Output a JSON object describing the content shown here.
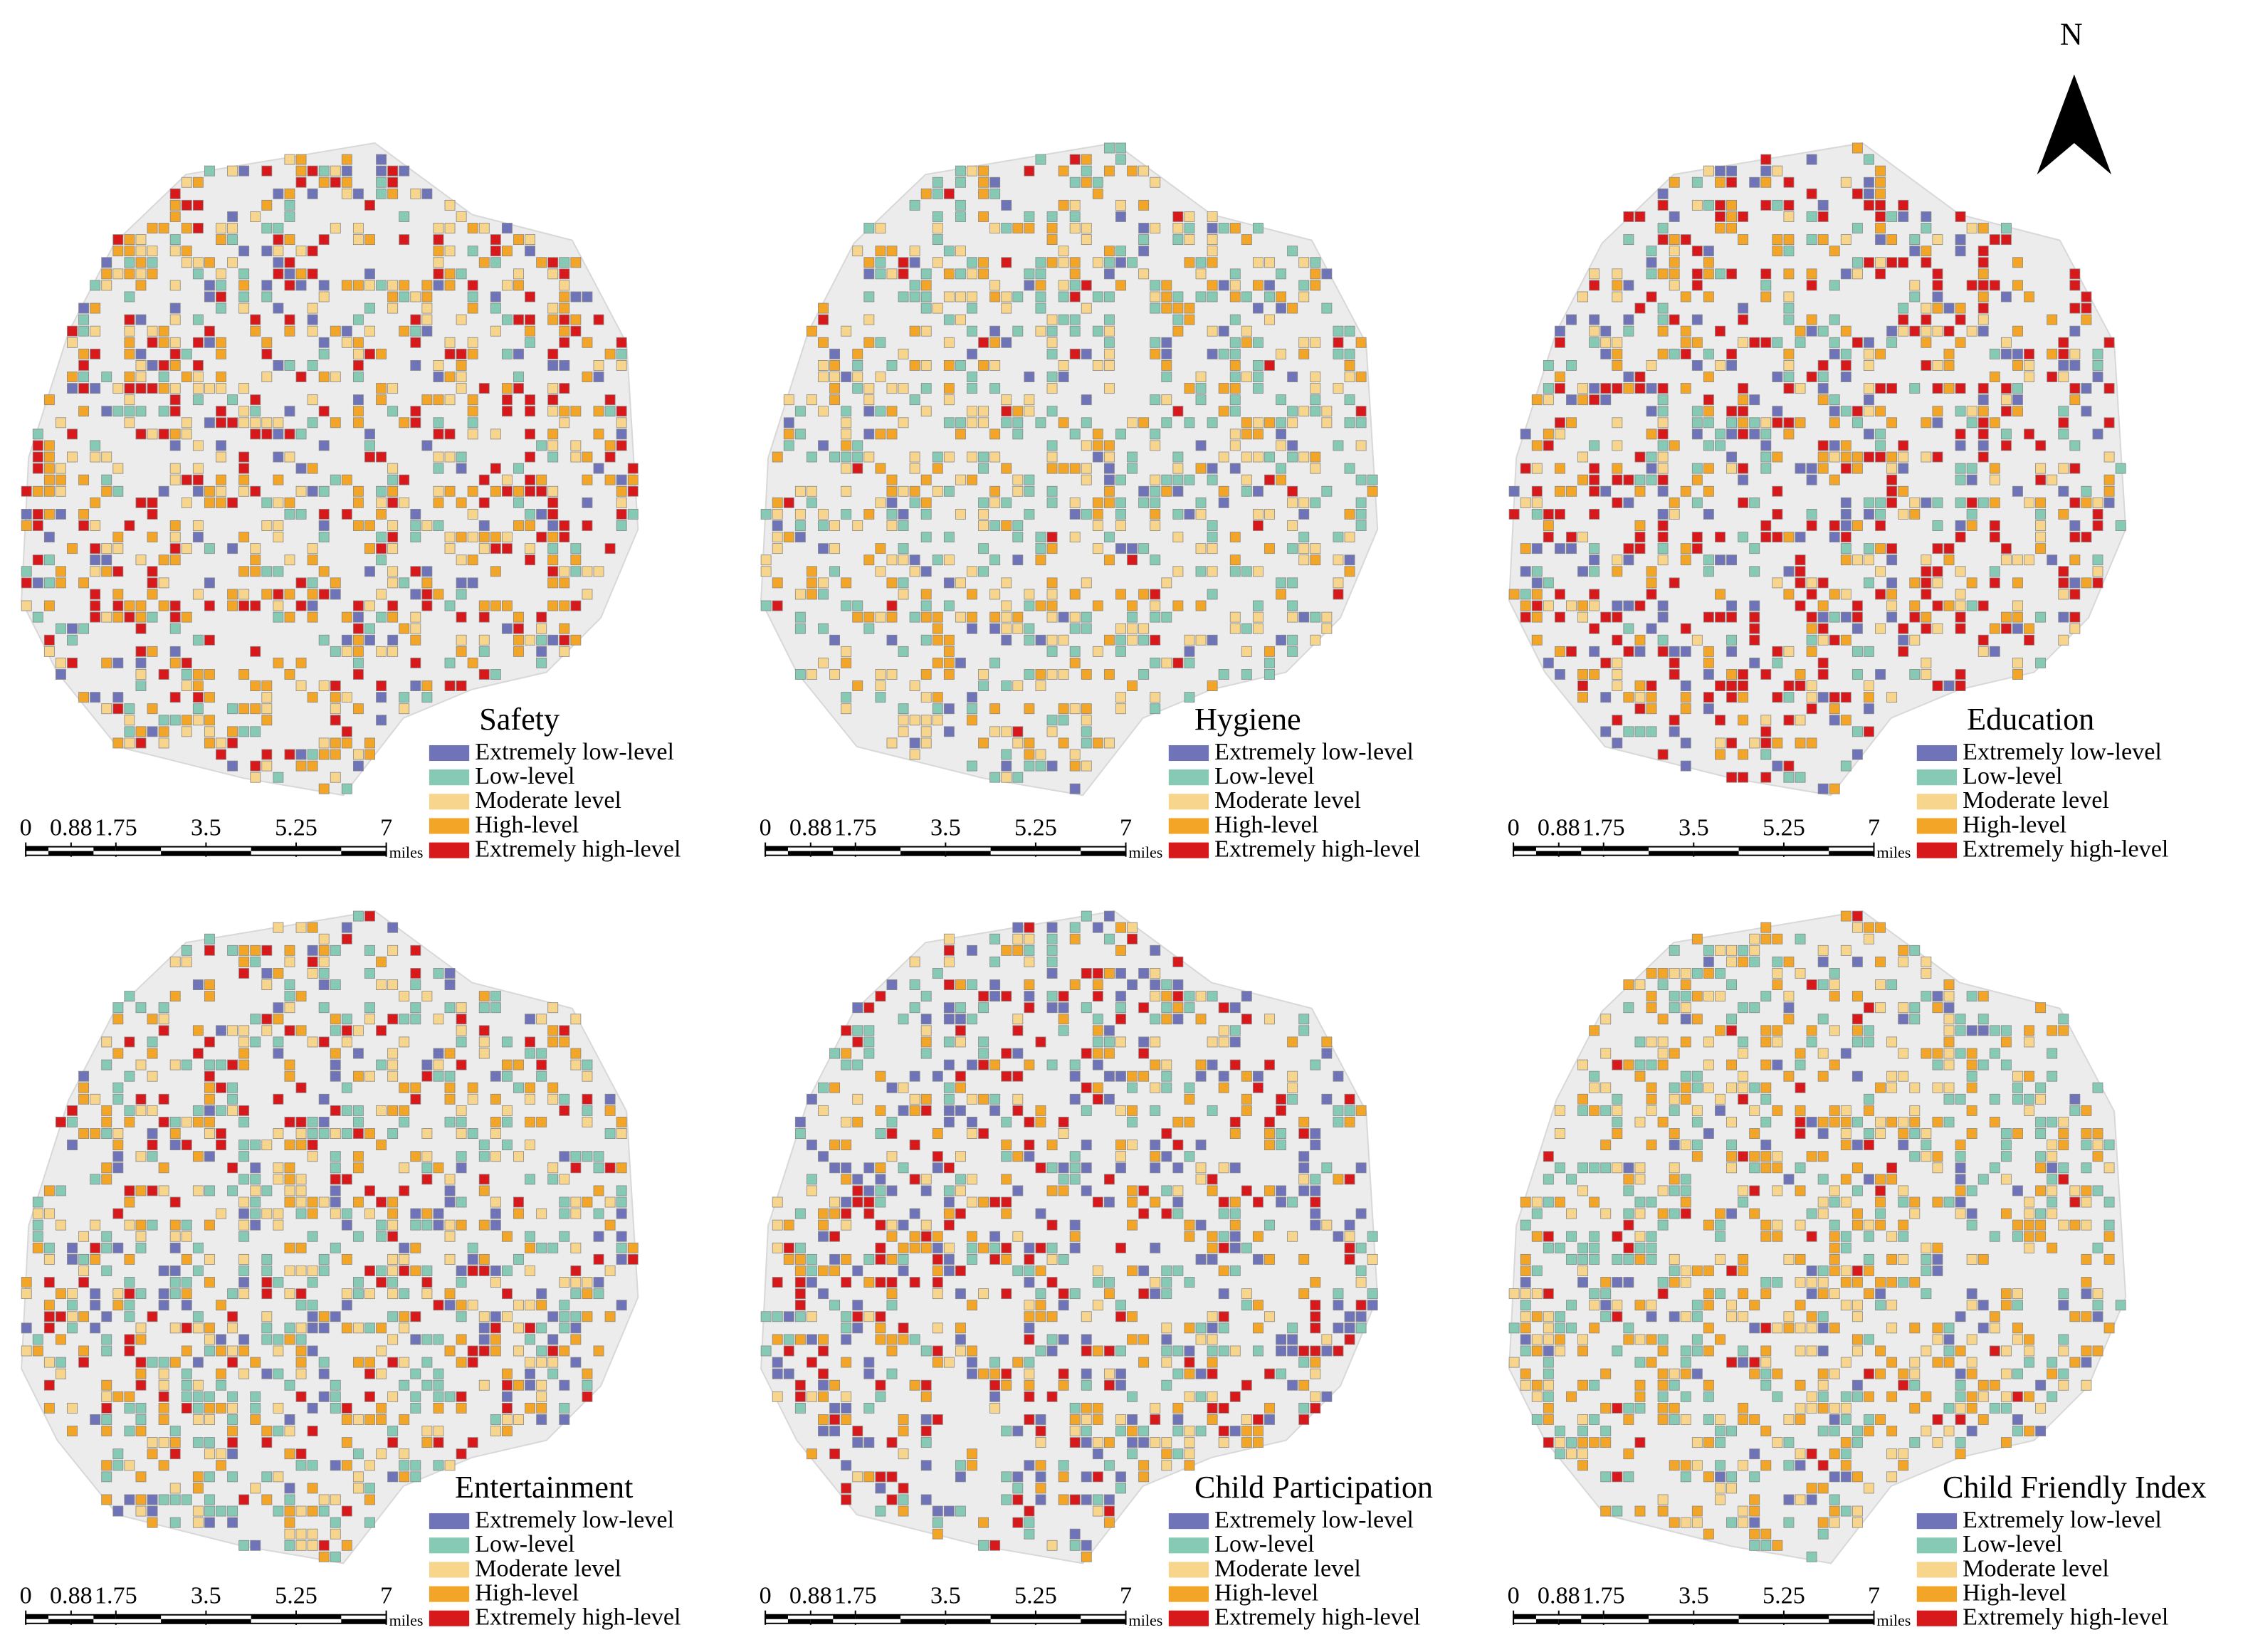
{
  "north_arrow": "N",
  "panels": [
    {
      "title": "Safety"
    },
    {
      "title": "Hygiene"
    },
    {
      "title": "Education"
    },
    {
      "title": "Entertainment"
    },
    {
      "title": "Child Participation"
    },
    {
      "title": "Child Friendly Index"
    }
  ],
  "legend": {
    "items": [
      {
        "label": "Extremely low-level",
        "color": "#6f73b8"
      },
      {
        "label": "Low-level",
        "color": "#86c9b4"
      },
      {
        "label": "Moderate level",
        "color": "#f7d58c"
      },
      {
        "label": "High-level",
        "color": "#f2a527"
      },
      {
        "label": "Extremely high-level",
        "color": "#d7191c"
      }
    ]
  },
  "scale_bar": {
    "ticks": [
      0,
      0.88,
      1.75,
      3.5,
      5.25,
      7
    ],
    "unit": "miles"
  }
}
